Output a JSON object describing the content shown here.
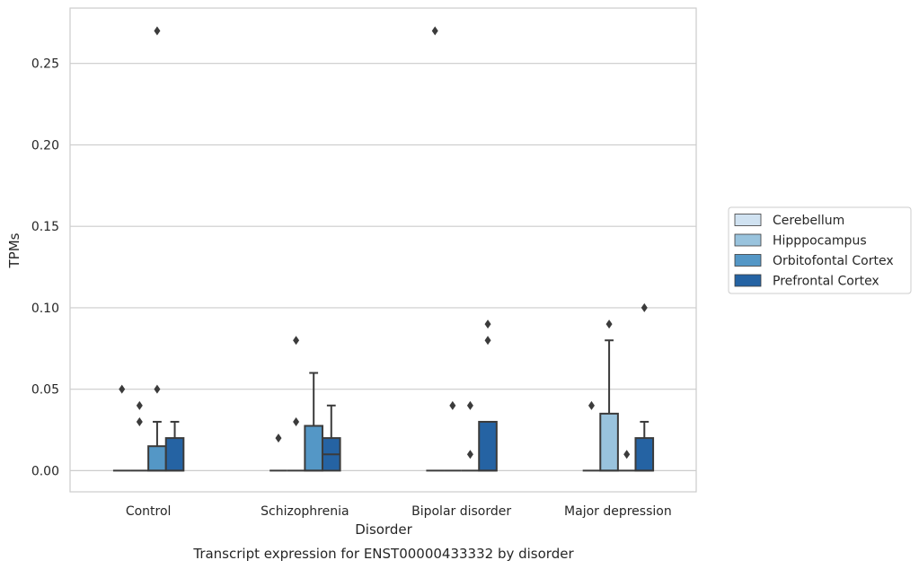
{
  "chart_data": {
    "type": "box",
    "title": "Transcript expression for ENST00000433332 by disorder",
    "xlabel": "Disorder",
    "ylabel": "TPMs",
    "categories": [
      "Control",
      "Schizophrenia",
      "Bipolar disorder",
      "Major depression"
    ],
    "ylim": [
      -0.013,
      0.284
    ],
    "yticks": [
      0.0,
      0.05,
      0.1,
      0.15,
      0.2,
      0.25
    ],
    "ytick_labels": [
      "0.00",
      "0.05",
      "0.10",
      "0.15",
      "0.20",
      "0.25"
    ],
    "grid": "horizontal",
    "legend_position": "right",
    "series": [
      {
        "name": "Cerebellum",
        "color": "#d0e2f1",
        "boxes": [
          {
            "category": "Control",
            "q1": 0,
            "median": 0,
            "q3": 0,
            "whisker_low": 0,
            "whisker_high": 0,
            "outliers": [
              0.05
            ]
          },
          {
            "category": "Schizophrenia",
            "q1": 0,
            "median": 0,
            "q3": 0,
            "whisker_low": 0,
            "whisker_high": 0,
            "outliers": [
              0.02
            ]
          },
          {
            "category": "Bipolar disorder",
            "q1": 0,
            "median": 0,
            "q3": 0,
            "whisker_low": 0,
            "whisker_high": 0,
            "outliers": [
              0.27
            ]
          },
          {
            "category": "Major depression",
            "q1": 0,
            "median": 0,
            "q3": 0,
            "whisker_low": 0,
            "whisker_high": 0,
            "outliers": [
              0.04
            ]
          }
        ]
      },
      {
        "name": "Hipppocampus",
        "color": "#99c3dd",
        "boxes": [
          {
            "category": "Control",
            "q1": 0,
            "median": 0,
            "q3": 0,
            "whisker_low": 0,
            "whisker_high": 0,
            "outliers": [
              0.03,
              0.04
            ]
          },
          {
            "category": "Schizophrenia",
            "q1": 0,
            "median": 0,
            "q3": 0,
            "whisker_low": 0,
            "whisker_high": 0,
            "outliers": [
              0.03,
              0.08
            ]
          },
          {
            "category": "Bipolar disorder",
            "q1": 0,
            "median": 0,
            "q3": 0,
            "whisker_low": 0,
            "whisker_high": 0,
            "outliers": [
              0.04
            ]
          },
          {
            "category": "Major depression",
            "q1": 0,
            "median": 0,
            "q3": 0.035,
            "whisker_low": 0,
            "whisker_high": 0.08,
            "outliers": [
              0.09
            ]
          }
        ]
      },
      {
        "name": "Orbitofontal Cortex",
        "color": "#5497c6",
        "boxes": [
          {
            "category": "Control",
            "q1": 0,
            "median": 0,
            "q3": 0.015,
            "whisker_low": 0,
            "whisker_high": 0.03,
            "outliers": [
              0.05,
              0.27
            ]
          },
          {
            "category": "Schizophrenia",
            "q1": 0,
            "median": 0,
            "q3": 0.0275,
            "whisker_low": 0,
            "whisker_high": 0.06,
            "outliers": []
          },
          {
            "category": "Bipolar disorder",
            "q1": 0,
            "median": 0,
            "q3": 0,
            "whisker_low": 0,
            "whisker_high": 0,
            "outliers": [
              0.01,
              0.04
            ]
          },
          {
            "category": "Major depression",
            "q1": 0,
            "median": 0,
            "q3": 0,
            "whisker_low": 0,
            "whisker_high": 0,
            "outliers": [
              0.01
            ]
          }
        ]
      },
      {
        "name": "Prefrontal Cortex",
        "color": "#2563a3",
        "boxes": [
          {
            "category": "Control",
            "q1": 0,
            "median": 0,
            "q3": 0.02,
            "whisker_low": 0,
            "whisker_high": 0.03,
            "outliers": []
          },
          {
            "category": "Schizophrenia",
            "q1": 0,
            "median": 0.01,
            "q3": 0.02,
            "whisker_low": 0,
            "whisker_high": 0.04,
            "outliers": []
          },
          {
            "category": "Bipolar disorder",
            "q1": 0,
            "median": 0,
            "q3": 0.03,
            "whisker_low": 0,
            "whisker_high": 0.03,
            "outliers": [
              0.08,
              0.09
            ]
          },
          {
            "category": "Major depression",
            "q1": 0,
            "median": 0,
            "q3": 0.02,
            "whisker_low": 0,
            "whisker_high": 0.03,
            "outliers": [
              0.1
            ]
          }
        ]
      }
    ]
  }
}
